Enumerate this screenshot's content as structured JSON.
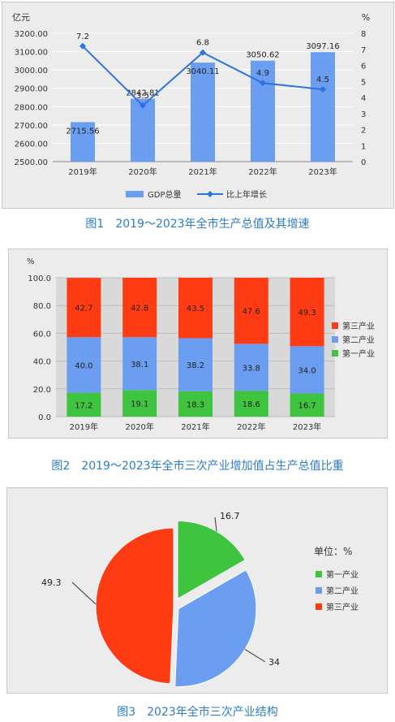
{
  "chart_data": [
    {
      "type": "bar+line",
      "caption": "图1　2019～2023年全市生产总值及其增速",
      "left_unit": "亿元",
      "right_unit": "%",
      "categories": [
        "2019年",
        "2020年",
        "2021年",
        "2022年",
        "2023年"
      ],
      "left_ticks": [
        "2500.00",
        "2600.00",
        "2700.00",
        "2800.00",
        "2900.00",
        "3000.00",
        "3100.00",
        "3200.00"
      ],
      "right_ticks": [
        "0",
        "1",
        "2",
        "3",
        "4",
        "5",
        "6",
        "7",
        "8"
      ],
      "ylim_left": [
        2500,
        3200
      ],
      "ylim_right": [
        0,
        8
      ],
      "series": [
        {
          "name": "GDP总量",
          "type": "bar",
          "values": [
            2715.56,
            2842.81,
            3040.11,
            3050.62,
            3097.16
          ],
          "labels": [
            "2715.56",
            "2842.81",
            "3040.11",
            "3050.62",
            "3097.16"
          ]
        },
        {
          "name": "比上年增长",
          "type": "line",
          "values": [
            7.2,
            3.5,
            6.8,
            4.9,
            4.5
          ],
          "labels": [
            "7.2",
            "3.5",
            "6.8",
            "4.9",
            "4.5"
          ]
        }
      ],
      "colors": {
        "bar": "#6b9ef0",
        "line": "#2d74e0"
      }
    },
    {
      "type": "stacked-bar",
      "caption": "图2　2019～2023年全市三次产业增加值占生产总值比重",
      "unit": "%",
      "categories": [
        "2019年",
        "2020年",
        "2021年",
        "2022年",
        "2023年"
      ],
      "y_ticks": [
        "0.0",
        "20.0",
        "40.0",
        "60.0",
        "80.0",
        "100.0"
      ],
      "ylim": [
        0,
        100
      ],
      "series": [
        {
          "name": "第一产业",
          "values": [
            17.2,
            19.1,
            18.3,
            18.6,
            16.7
          ],
          "labels": [
            "17.2",
            "19.1",
            "18.3",
            "18.6",
            "16.7"
          ],
          "color": "#3ec43e"
        },
        {
          "name": "第二产业",
          "values": [
            40.0,
            38.1,
            38.2,
            33.8,
            34.0
          ],
          "labels": [
            "40.0",
            "38.1",
            "38.2",
            "33.8",
            "34.0"
          ],
          "color": "#6b9ef0"
        },
        {
          "name": "第三产业",
          "values": [
            42.7,
            42.8,
            43.5,
            47.6,
            49.3
          ],
          "labels": [
            "42.7",
            "42.8",
            "43.5",
            "47.6",
            "49.3"
          ],
          "color": "#ff3b14"
        }
      ],
      "legend_order": [
        "第三产业",
        "第二产业",
        "第一产业"
      ]
    },
    {
      "type": "pie",
      "caption": "图3　2023年全市三次产业结构",
      "unit_label": "单位：%",
      "slices": [
        {
          "name": "第一产业",
          "value": 16.7,
          "label": "16.7",
          "color": "#3ec43e"
        },
        {
          "name": "第二产业",
          "value": 34.0,
          "label": "34",
          "color": "#6b9ef0"
        },
        {
          "name": "第三产业",
          "value": 49.3,
          "label": "49.3",
          "color": "#ff3b14"
        }
      ]
    }
  ]
}
